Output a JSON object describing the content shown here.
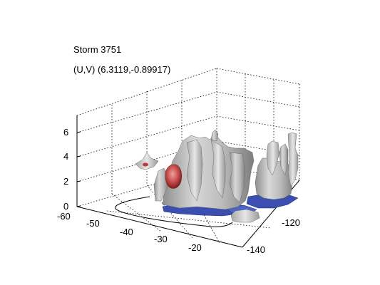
{
  "figure": {
    "title": "Storm 3751",
    "uv_readout": "(U,V) (6.3119,-0.89917)"
  },
  "axes": {
    "z_ticks": [
      "0",
      "2",
      "4",
      "6"
    ],
    "x_ticks": [
      "-60",
      "-50",
      "-40",
      "-30",
      "-20"
    ],
    "y_ticks": [
      "-120",
      "-140"
    ]
  },
  "colors": {
    "background": "#ffffff",
    "isosurface_gray": "#c4c4c4",
    "isosurface_blue": "#3a4fb0",
    "isosurface_red": "#b83c3c",
    "gridline": "#000000"
  }
}
